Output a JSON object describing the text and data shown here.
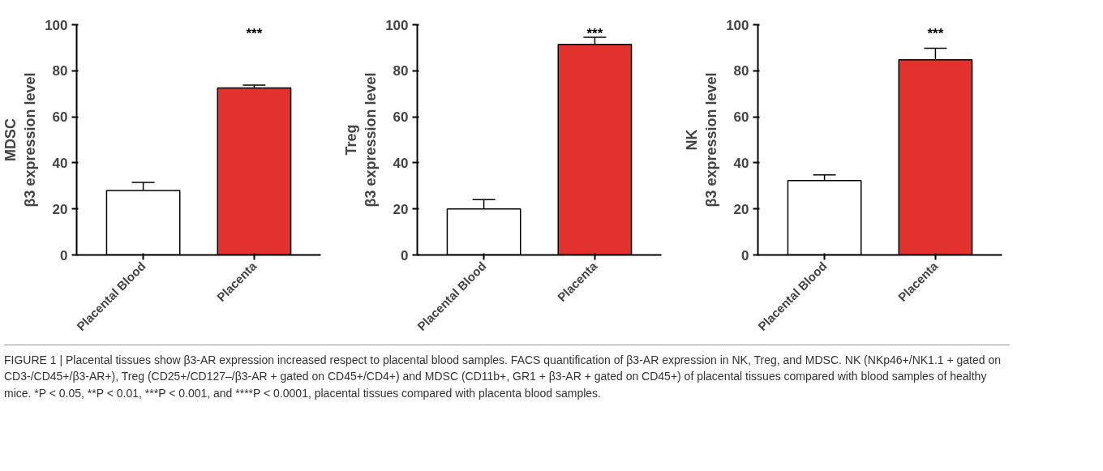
{
  "chart_data": [
    {
      "type": "bar",
      "ylabel": "MDSC\nβ3 expression level",
      "categories": [
        "Placental Blood",
        "Placenta"
      ],
      "values": [
        28,
        72.5
      ],
      "errors": [
        3.5,
        1.3
      ],
      "colors": [
        "#ffffff",
        "#e3322d"
      ],
      "ylim": [
        0,
        100
      ],
      "yticks": [
        0,
        20,
        40,
        60,
        80,
        100
      ],
      "grid": false,
      "annotations": [
        "***"
      ]
    },
    {
      "type": "bar",
      "ylabel": "Treg\nβ3 expression level",
      "categories": [
        "Placental Blood",
        "Placenta"
      ],
      "values": [
        20,
        91.5
      ],
      "errors": [
        4,
        3
      ],
      "colors": [
        "#ffffff",
        "#e3322d"
      ],
      "ylim": [
        0,
        100
      ],
      "yticks": [
        0,
        20,
        40,
        60,
        80,
        100
      ],
      "grid": false,
      "annotations": [
        "***"
      ]
    },
    {
      "type": "bar",
      "ylabel": "NK\nβ3 expression level",
      "categories": [
        "Placental Blood",
        "Placenta"
      ],
      "values": [
        32.3,
        84.8
      ],
      "errors": [
        2.5,
        5
      ],
      "colors": [
        "#ffffff",
        "#e3322d"
      ],
      "ylim": [
        0,
        100
      ],
      "yticks": [
        0,
        20,
        40,
        60,
        80,
        100
      ],
      "grid": false,
      "annotations": [
        "***",
        "FIGURE 1 | Placental tissues show β3-AR expression increased respect to placental blood samples. FACS quantification of β3-AR expression in NK, Treg, and MDSC. NK (NKp46+/NK1.1 + gated on CD3-/CD45+/β3-AR+), Treg (CD25+/CD127–/β3-AR + gated on CD45+/CD4+) and MDSC (CD11b+, GR1 + β3-AR + gated on CD45+) of placental tissues compared with blood samples of healthy mice. *P < 0.05, **P < 0.01, ***P < 0.001, and ****P < 0.0001, placental tissues compared with placenta blood samples."
      ]
    }
  ]
}
